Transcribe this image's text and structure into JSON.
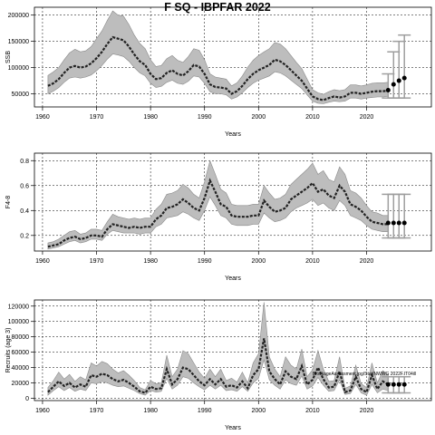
{
  "figure_title": "F SQ - IBPFAR 2022",
  "chart_data": [
    {
      "type": "line",
      "title": "F SQ - IBPFAR 2022",
      "xlabel": "Years",
      "ylabel": "SSB",
      "xlim": [
        1958.5,
        2032
      ],
      "ylim": [
        25000,
        215000
      ],
      "x_ticks": [
        1960,
        1970,
        1980,
        1990,
        2000,
        2010,
        2020
      ],
      "y_ticks": [
        50000,
        100000,
        150000,
        200000
      ],
      "grid": true,
      "x": [
        1961,
        1962,
        1963,
        1964,
        1965,
        1966,
        1967,
        1968,
        1969,
        1970,
        1971,
        1972,
        1973,
        1974,
        1975,
        1976,
        1977,
        1978,
        1979,
        1980,
        1981,
        1982,
        1983,
        1984,
        1985,
        1986,
        1987,
        1988,
        1989,
        1990,
        1991,
        1992,
        1993,
        1994,
        1995,
        1996,
        1997,
        1998,
        1999,
        2000,
        2001,
        2002,
        2003,
        2004,
        2005,
        2006,
        2007,
        2008,
        2009,
        2010,
        2011,
        2012,
        2013,
        2014,
        2015,
        2016,
        2017,
        2018,
        2019,
        2020,
        2021,
        2022,
        2023,
        2024
      ],
      "median": [
        65000,
        70000,
        78000,
        90000,
        100000,
        103000,
        100000,
        102000,
        108000,
        118000,
        130000,
        145000,
        158000,
        155000,
        152000,
        140000,
        125000,
        112000,
        105000,
        88000,
        78000,
        80000,
        90000,
        95000,
        88000,
        85000,
        93000,
        105000,
        102000,
        88000,
        68000,
        63000,
        62000,
        60000,
        50000,
        55000,
        65000,
        78000,
        88000,
        95000,
        100000,
        105000,
        115000,
        112000,
        105000,
        95000,
        85000,
        75000,
        60000,
        45000,
        40000,
        38000,
        42000,
        45000,
        43000,
        45000,
        52000,
        52000,
        50000,
        52000,
        54000,
        55000,
        55000,
        56000
      ],
      "lower": [
        50000,
        55000,
        62000,
        72000,
        80000,
        82000,
        80000,
        82000,
        86000,
        94000,
        104000,
        116000,
        126000,
        124000,
        121000,
        112000,
        100000,
        90000,
        84000,
        70000,
        62000,
        64000,
        72000,
        76000,
        70000,
        68000,
        74000,
        84000,
        82000,
        70000,
        54000,
        50000,
        50000,
        48000,
        40000,
        44000,
        52000,
        62000,
        70000,
        76000,
        80000,
        84000,
        92000,
        90000,
        84000,
        76000,
        68000,
        60000,
        48000,
        36000,
        32000,
        31000,
        34000,
        36000,
        35000,
        36000,
        42000,
        42000,
        40000,
        42000,
        43000,
        44000,
        44000,
        45000
      ],
      "upper": [
        85000,
        92000,
        100000,
        115000,
        128000,
        135000,
        130000,
        132000,
        140000,
        155000,
        170000,
        190000,
        208000,
        200000,
        198000,
        182000,
        162000,
        146000,
        136000,
        115000,
        102000,
        104000,
        117000,
        123000,
        114000,
        110000,
        121000,
        136000,
        133000,
        115000,
        88000,
        82000,
        80000,
        78000,
        65000,
        71000,
        84000,
        101000,
        114000,
        123000,
        130000,
        136000,
        148000,
        145000,
        136000,
        123000,
        110000,
        98000,
        78000,
        58000,
        52000,
        49000,
        54000,
        58000,
        56000,
        58000,
        67000,
        67000,
        65000,
        67000,
        70000,
        71000,
        71000,
        72000
      ],
      "projection": [
        {
          "year": 2024,
          "value": 57000,
          "low": 42000,
          "high": 88000
        },
        {
          "year": 2025,
          "value": 68000,
          "low": 42000,
          "high": 130000
        },
        {
          "year": 2026,
          "value": 75000,
          "low": 42000,
          "high": 150000
        },
        {
          "year": 2027,
          "value": 80000,
          "low": 42000,
          "high": 162000
        }
      ]
    },
    {
      "type": "line",
      "xlabel": "Years",
      "ylabel": "F4-8",
      "xlim": [
        1958.5,
        2032
      ],
      "ylim": [
        0.075,
        0.86
      ],
      "x_ticks": [
        1960,
        1970,
        1980,
        1990,
        2000,
        2010,
        2020
      ],
      "y_ticks": [
        0.2,
        0.4,
        0.6,
        0.8
      ],
      "grid": true,
      "x": [
        1961,
        1962,
        1963,
        1964,
        1965,
        1966,
        1967,
        1968,
        1969,
        1970,
        1971,
        1972,
        1973,
        1974,
        1975,
        1976,
        1977,
        1978,
        1979,
        1980,
        1981,
        1982,
        1983,
        1984,
        1985,
        1986,
        1987,
        1988,
        1989,
        1990,
        1991,
        1992,
        1993,
        1994,
        1995,
        1996,
        1997,
        1998,
        1999,
        2000,
        2001,
        2002,
        2003,
        2004,
        2005,
        2006,
        2007,
        2008,
        2009,
        2010,
        2011,
        2012,
        2013,
        2014,
        2015,
        2016,
        2017,
        2018,
        2019,
        2020,
        2021,
        2022,
        2023,
        2024
      ],
      "median": [
        0.11,
        0.12,
        0.13,
        0.16,
        0.18,
        0.19,
        0.17,
        0.18,
        0.2,
        0.2,
        0.19,
        0.25,
        0.29,
        0.28,
        0.27,
        0.26,
        0.27,
        0.26,
        0.27,
        0.27,
        0.33,
        0.36,
        0.42,
        0.43,
        0.45,
        0.49,
        0.46,
        0.42,
        0.4,
        0.5,
        0.64,
        0.55,
        0.45,
        0.43,
        0.36,
        0.35,
        0.35,
        0.35,
        0.36,
        0.36,
        0.48,
        0.43,
        0.39,
        0.4,
        0.42,
        0.49,
        0.52,
        0.55,
        0.58,
        0.62,
        0.55,
        0.57,
        0.52,
        0.5,
        0.6,
        0.55,
        0.45,
        0.43,
        0.4,
        0.35,
        0.31,
        0.3,
        0.29,
        0.29
      ],
      "lower": [
        0.09,
        0.1,
        0.11,
        0.13,
        0.15,
        0.16,
        0.14,
        0.15,
        0.17,
        0.17,
        0.16,
        0.21,
        0.24,
        0.23,
        0.22,
        0.22,
        0.22,
        0.21,
        0.22,
        0.22,
        0.27,
        0.29,
        0.34,
        0.35,
        0.36,
        0.39,
        0.37,
        0.34,
        0.32,
        0.4,
        0.51,
        0.44,
        0.36,
        0.34,
        0.29,
        0.28,
        0.28,
        0.28,
        0.29,
        0.29,
        0.38,
        0.34,
        0.31,
        0.32,
        0.34,
        0.39,
        0.42,
        0.44,
        0.46,
        0.49,
        0.44,
        0.46,
        0.42,
        0.4,
        0.48,
        0.44,
        0.36,
        0.34,
        0.32,
        0.28,
        0.25,
        0.24,
        0.23,
        0.23
      ],
      "upper": [
        0.14,
        0.15,
        0.17,
        0.2,
        0.23,
        0.24,
        0.21,
        0.22,
        0.25,
        0.25,
        0.24,
        0.31,
        0.37,
        0.35,
        0.34,
        0.33,
        0.34,
        0.33,
        0.34,
        0.34,
        0.41,
        0.45,
        0.53,
        0.54,
        0.56,
        0.61,
        0.58,
        0.53,
        0.5,
        0.63,
        0.8,
        0.69,
        0.57,
        0.54,
        0.45,
        0.44,
        0.44,
        0.44,
        0.45,
        0.45,
        0.6,
        0.54,
        0.49,
        0.5,
        0.53,
        0.61,
        0.65,
        0.69,
        0.73,
        0.78,
        0.69,
        0.72,
        0.65,
        0.63,
        0.75,
        0.69,
        0.56,
        0.54,
        0.5,
        0.44,
        0.39,
        0.38,
        0.36,
        0.36
      ],
      "projection": [
        {
          "year": 2024,
          "value": 0.3,
          "low": 0.18,
          "high": 0.53
        },
        {
          "year": 2025,
          "value": 0.3,
          "low": 0.18,
          "high": 0.53
        },
        {
          "year": 2026,
          "value": 0.3,
          "low": 0.18,
          "high": 0.53
        },
        {
          "year": 2027,
          "value": 0.3,
          "low": 0.18,
          "high": 0.53
        }
      ]
    },
    {
      "type": "line",
      "xlabel": "Years",
      "ylabel": "Recruits (age 3)",
      "xlim": [
        1958.5,
        2032
      ],
      "ylim": [
        -3000,
        128000
      ],
      "x_ticks": [
        1960,
        1970,
        1980,
        1990,
        2000,
        2010,
        2020
      ],
      "y_ticks": [
        0,
        20000,
        40000,
        60000,
        80000,
        100000,
        120000
      ],
      "grid": true,
      "annotation": "BlockageAssessment.jpg/Stat/NWWG 2022F.IT04ill",
      "x": [
        1961,
        1962,
        1963,
        1964,
        1965,
        1966,
        1967,
        1968,
        1969,
        1970,
        1971,
        1972,
        1973,
        1974,
        1975,
        1976,
        1977,
        1978,
        1979,
        1980,
        1981,
        1982,
        1983,
        1984,
        1985,
        1986,
        1987,
        1988,
        1989,
        1990,
        1991,
        1992,
        1993,
        1994,
        1995,
        1996,
        1997,
        1998,
        1999,
        2000,
        2001,
        2002,
        2003,
        2004,
        2005,
        2006,
        2007,
        2008,
        2009,
        2010,
        2011,
        2012,
        2013,
        2014,
        2015,
        2016,
        2017,
        2018,
        2019,
        2020,
        2021,
        2022,
        2023,
        2024
      ],
      "median": [
        8000,
        15000,
        22000,
        16000,
        20000,
        14000,
        18000,
        15000,
        30000,
        28000,
        32000,
        30000,
        25000,
        22000,
        24000,
        20000,
        15000,
        9000,
        7000,
        15000,
        12000,
        13000,
        38000,
        18000,
        25000,
        40000,
        38000,
        30000,
        22000,
        17000,
        25000,
        18000,
        25000,
        15000,
        17000,
        14000,
        22000,
        13000,
        30000,
        38000,
        78000,
        35000,
        25000,
        18000,
        35000,
        28000,
        25000,
        42000,
        18000,
        24000,
        40000,
        25000,
        14000,
        15000,
        35000,
        8000,
        10000,
        28000,
        12000,
        8000,
        30000,
        12000,
        22000,
        18000
      ],
      "lower": [
        4000,
        10000,
        15000,
        10000,
        14000,
        9000,
        12000,
        10000,
        20000,
        19000,
        22000,
        20000,
        17000,
        15000,
        16000,
        13000,
        10000,
        6000,
        4000,
        10000,
        8000,
        9000,
        26000,
        12000,
        17000,
        28000,
        26000,
        20000,
        15000,
        11000,
        17000,
        12000,
        17000,
        10000,
        11000,
        9000,
        15000,
        9000,
        20000,
        26000,
        50000,
        24000,
        17000,
        12000,
        24000,
        19000,
        17000,
        29000,
        12000,
        16000,
        27000,
        17000,
        9000,
        10000,
        24000,
        5000,
        6000,
        18000,
        7000,
        4000,
        18000,
        7000,
        12000,
        10000
      ],
      "upper": [
        14000,
        23000,
        34000,
        25000,
        31000,
        22000,
        28000,
        24000,
        46000,
        42000,
        48000,
        45000,
        38000,
        33000,
        36000,
        30000,
        23000,
        14000,
        11000,
        23000,
        19000,
        20000,
        56000,
        28000,
        38000,
        62000,
        58000,
        46000,
        34000,
        26000,
        38000,
        28000,
        38000,
        23000,
        26000,
        21000,
        34000,
        20000,
        46000,
        58000,
        125000,
        54000,
        38000,
        28000,
        54000,
        43000,
        38000,
        64000,
        28000,
        37000,
        62000,
        38000,
        22000,
        23000,
        54000,
        13000,
        16000,
        43000,
        19000,
        14000,
        46000,
        20000,
        36000,
        30000
      ],
      "projection": [
        {
          "year": 2024,
          "value": 18000,
          "low": 7000,
          "high": 28000
        },
        {
          "year": 2025,
          "value": 18000,
          "low": 7000,
          "high": 28000
        },
        {
          "year": 2026,
          "value": 18000,
          "low": 7000,
          "high": 28000
        },
        {
          "year": 2027,
          "value": 18000,
          "low": 7000,
          "high": 28000
        }
      ]
    }
  ],
  "colors": {
    "band": "#bdbdbd",
    "line": "#222222",
    "projection_bars": "#9e9e9e",
    "points": "#000000",
    "grid": "#000000"
  }
}
